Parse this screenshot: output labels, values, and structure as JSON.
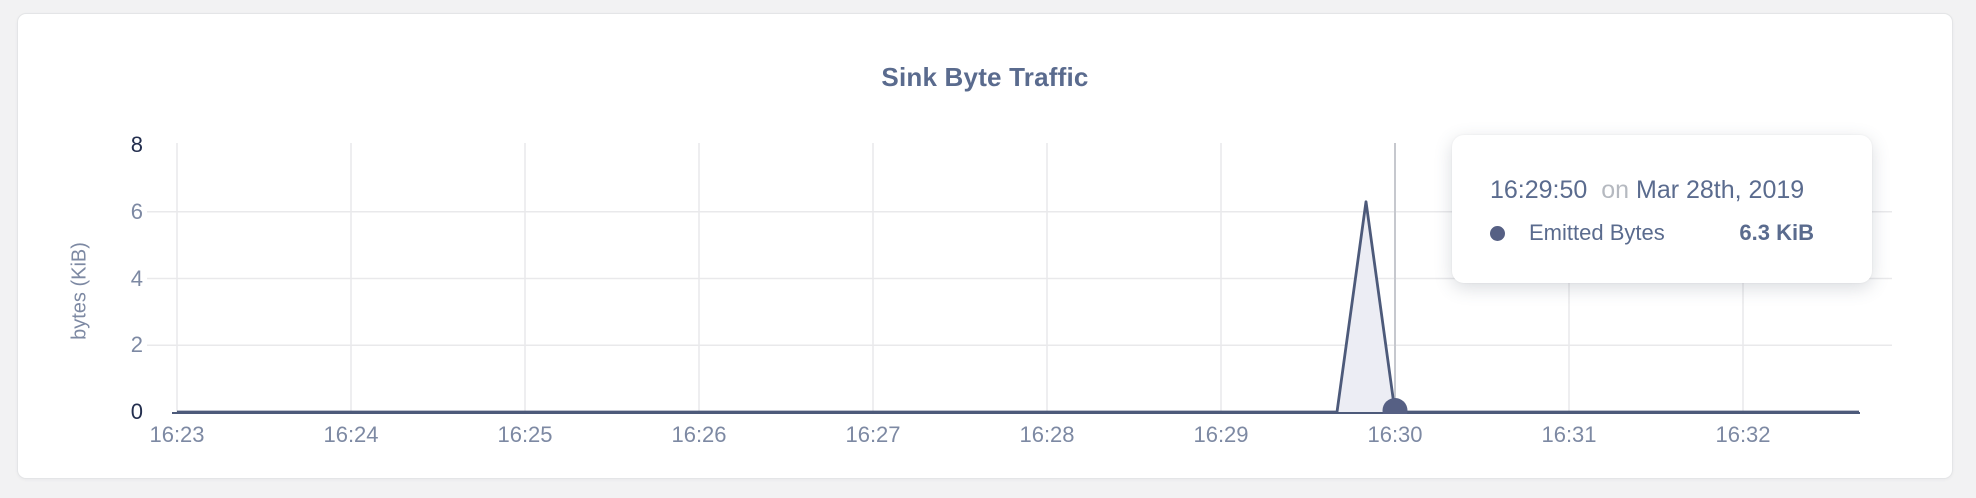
{
  "card": {
    "title": "Sink Byte Traffic"
  },
  "chart_data": {
    "type": "area",
    "title": "Sink Byte Traffic",
    "xlabel": "",
    "ylabel": "bytes (KiB)",
    "ylim": [
      0,
      8
    ],
    "y_ticks": [
      8,
      6,
      4,
      2,
      0
    ],
    "x_ticks": [
      "16:23",
      "16:24",
      "16:25",
      "16:26",
      "16:27",
      "16:28",
      "16:29",
      "16:30",
      "16:31",
      "16:32"
    ],
    "x_range": [
      "16:23:00",
      "16:32:40"
    ],
    "grid": true,
    "legend": "none",
    "series": [
      {
        "name": "Emitted Bytes",
        "points": [
          [
            "16:23:00",
            0
          ],
          [
            "16:29:40",
            0
          ],
          [
            "16:29:50",
            6.3
          ],
          [
            "16:30:00",
            0
          ],
          [
            "16:32:40",
            0
          ]
        ]
      }
    ],
    "hover": {
      "time": "16:29:50",
      "preposition": "on",
      "date": "Mar 28th, 2019",
      "series_label": "Emitted Bytes",
      "value": "6.3 KiB",
      "marker_time": "16:30:00"
    }
  },
  "colors": {
    "line": "#4d5a7a",
    "area_fill": "#ecedf4",
    "gridline": "#e9e9eb",
    "crosshair": "#c6c8ce",
    "axis": "#4d5a7a",
    "marker": "#566084",
    "tick_muted": "#7d89a3",
    "tick_strong": "#232e4e",
    "title_text": "#5a6b8e",
    "tooltip_text": "#5a6b8e",
    "tooltip_muted": "#b5b9c0"
  }
}
